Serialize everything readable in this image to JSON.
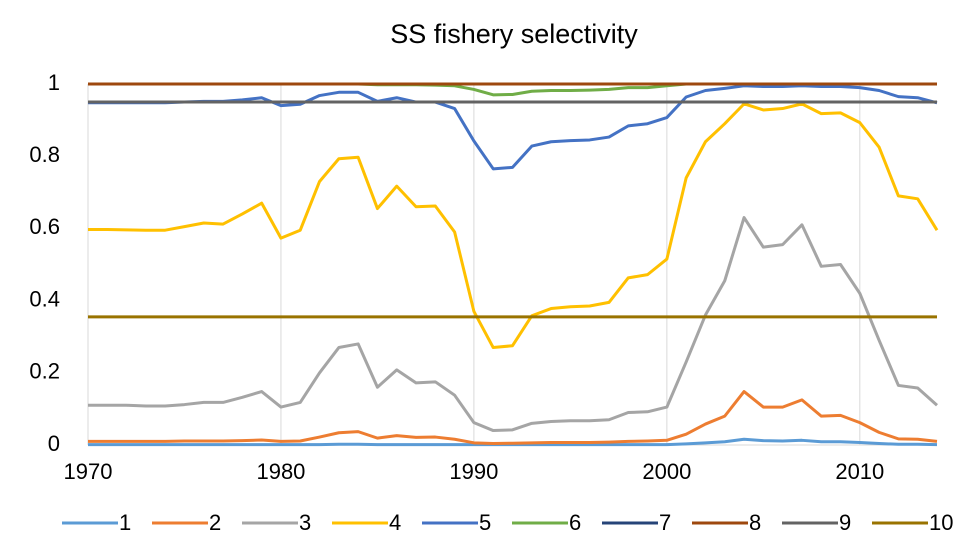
{
  "chart_data": {
    "type": "line",
    "title": "SS fishery selectivity",
    "x": [
      1970,
      1971,
      1972,
      1973,
      1974,
      1975,
      1976,
      1977,
      1978,
      1979,
      1980,
      1981,
      1982,
      1983,
      1984,
      1985,
      1986,
      1987,
      1988,
      1989,
      1990,
      1991,
      1992,
      1993,
      1994,
      1995,
      1996,
      1997,
      1998,
      1999,
      2000,
      2001,
      2002,
      2003,
      2004,
      2005,
      2006,
      2007,
      2008,
      2009,
      2010,
      2011,
      2012,
      2013,
      2014
    ],
    "xlim": [
      1970,
      2014
    ],
    "xticks": [
      1970,
      1980,
      1990,
      2000,
      2010
    ],
    "ylim": [
      0,
      1
    ],
    "yticks": [
      0,
      0.2,
      0.4,
      0.6,
      0.8,
      1
    ],
    "grid": true,
    "legend": "bottom",
    "series": [
      {
        "name": "1",
        "color": "#5b9bd5",
        "values": [
          0.001,
          0.001,
          0.001,
          0.001,
          0.001,
          0.001,
          0.001,
          0.001,
          0.001,
          0.001,
          0.001,
          0.001,
          0.001,
          0.002,
          0.002,
          0.001,
          0.001,
          0.001,
          0.001,
          0.001,
          0.001,
          0.001,
          0.001,
          0.001,
          0.001,
          0.001,
          0.001,
          0.001,
          0.001,
          0.001,
          0.001,
          0.003,
          0.006,
          0.009,
          0.016,
          0.012,
          0.011,
          0.013,
          0.009,
          0.009,
          0.007,
          0.004,
          0.002,
          0.002,
          0.001
        ]
      },
      {
        "name": "2",
        "color": "#ed7d31",
        "values": [
          0.01,
          0.01,
          0.01,
          0.01,
          0.01,
          0.011,
          0.011,
          0.011,
          0.012,
          0.014,
          0.01,
          0.011,
          0.022,
          0.034,
          0.037,
          0.019,
          0.026,
          0.021,
          0.022,
          0.016,
          0.006,
          0.004,
          0.005,
          0.006,
          0.007,
          0.007,
          0.007,
          0.008,
          0.01,
          0.011,
          0.013,
          0.03,
          0.058,
          0.08,
          0.148,
          0.105,
          0.105,
          0.125,
          0.08,
          0.082,
          0.062,
          0.035,
          0.017,
          0.016,
          0.01
        ]
      },
      {
        "name": "3",
        "color": "#a5a5a5",
        "values": [
          0.11,
          0.11,
          0.11,
          0.108,
          0.108,
          0.112,
          0.118,
          0.118,
          0.132,
          0.148,
          0.105,
          0.118,
          0.2,
          0.27,
          0.28,
          0.16,
          0.208,
          0.172,
          0.175,
          0.138,
          0.062,
          0.04,
          0.042,
          0.06,
          0.065,
          0.067,
          0.067,
          0.07,
          0.09,
          0.092,
          0.105,
          0.23,
          0.36,
          0.455,
          0.63,
          0.548,
          0.555,
          0.61,
          0.495,
          0.5,
          0.42,
          0.29,
          0.165,
          0.158,
          0.11
        ]
      },
      {
        "name": "4",
        "color": "#ffc000",
        "values": [
          0.597,
          0.597,
          0.596,
          0.595,
          0.595,
          0.605,
          0.615,
          0.612,
          0.64,
          0.67,
          0.573,
          0.595,
          0.73,
          0.793,
          0.797,
          0.655,
          0.717,
          0.66,
          0.662,
          0.59,
          0.37,
          0.27,
          0.275,
          0.358,
          0.378,
          0.383,
          0.385,
          0.395,
          0.463,
          0.472,
          0.515,
          0.74,
          0.84,
          0.89,
          0.945,
          0.928,
          0.932,
          0.945,
          0.918,
          0.92,
          0.893,
          0.825,
          0.69,
          0.682,
          0.595
        ]
      },
      {
        "name": "5",
        "color": "#4472c4",
        "values": [
          0.948,
          0.948,
          0.948,
          0.948,
          0.948,
          0.95,
          0.952,
          0.952,
          0.956,
          0.962,
          0.94,
          0.944,
          0.968,
          0.977,
          0.977,
          0.952,
          0.962,
          0.95,
          0.95,
          0.932,
          0.842,
          0.765,
          0.769,
          0.828,
          0.84,
          0.843,
          0.845,
          0.853,
          0.884,
          0.89,
          0.907,
          0.964,
          0.982,
          0.988,
          0.995,
          0.993,
          0.993,
          0.995,
          0.993,
          0.993,
          0.99,
          0.982,
          0.965,
          0.962,
          0.948
        ]
      },
      {
        "name": "6",
        "color": "#70ad47",
        "values": [
          1,
          1,
          1,
          1,
          1,
          1,
          1,
          1,
          1,
          1,
          1,
          1,
          1,
          1,
          1,
          0.998,
          0.998,
          0.998,
          0.997,
          0.995,
          0.985,
          0.97,
          0.971,
          0.98,
          0.982,
          0.982,
          0.983,
          0.985,
          0.99,
          0.99,
          0.995,
          1,
          1,
          1,
          1,
          1,
          1,
          1,
          1,
          1,
          1,
          1,
          1,
          1,
          1
        ]
      },
      {
        "name": "7",
        "color": "#264478",
        "values": [
          0.95,
          0.95,
          0.95,
          0.95,
          0.95,
          0.95,
          0.95,
          0.95,
          0.95,
          0.95,
          0.95,
          0.95,
          0.95,
          0.95,
          0.95,
          0.95,
          0.95,
          0.95,
          0.95,
          0.95,
          0.95,
          0.95,
          0.95,
          0.95,
          0.95,
          0.95,
          0.95,
          0.95,
          0.95,
          0.95,
          0.95,
          0.95,
          0.95,
          0.95,
          0.95,
          0.95,
          0.95,
          0.95,
          0.95,
          0.95,
          0.95,
          0.95,
          0.95,
          0.95,
          0.95
        ]
      },
      {
        "name": "8",
        "color": "#9e480e",
        "values": [
          1,
          1,
          1,
          1,
          1,
          1,
          1,
          1,
          1,
          1,
          1,
          1,
          1,
          1,
          1,
          1,
          1,
          1,
          1,
          1,
          1,
          1,
          1,
          1,
          1,
          1,
          1,
          1,
          1,
          1,
          1,
          1,
          1,
          1,
          1,
          1,
          1,
          1,
          1,
          1,
          1,
          1,
          1,
          1,
          1
        ]
      },
      {
        "name": "9",
        "color": "#636363",
        "values": [
          0.95,
          0.95,
          0.95,
          0.95,
          0.95,
          0.95,
          0.95,
          0.95,
          0.95,
          0.95,
          0.95,
          0.95,
          0.95,
          0.95,
          0.95,
          0.95,
          0.95,
          0.95,
          0.95,
          0.95,
          0.95,
          0.95,
          0.95,
          0.95,
          0.95,
          0.95,
          0.95,
          0.95,
          0.95,
          0.95,
          0.95,
          0.95,
          0.95,
          0.95,
          0.95,
          0.95,
          0.95,
          0.95,
          0.95,
          0.95,
          0.95,
          0.95,
          0.95,
          0.95,
          0.95
        ]
      },
      {
        "name": "10",
        "color": "#997300",
        "values": [
          0.355,
          0.355,
          0.355,
          0.355,
          0.355,
          0.355,
          0.355,
          0.355,
          0.355,
          0.355,
          0.355,
          0.355,
          0.355,
          0.355,
          0.355,
          0.355,
          0.355,
          0.355,
          0.355,
          0.355,
          0.355,
          0.355,
          0.355,
          0.355,
          0.355,
          0.355,
          0.355,
          0.355,
          0.355,
          0.355,
          0.355,
          0.355,
          0.355,
          0.355,
          0.355,
          0.355,
          0.355,
          0.355,
          0.355,
          0.355,
          0.355,
          0.355,
          0.355,
          0.355,
          0.355
        ]
      }
    ]
  }
}
